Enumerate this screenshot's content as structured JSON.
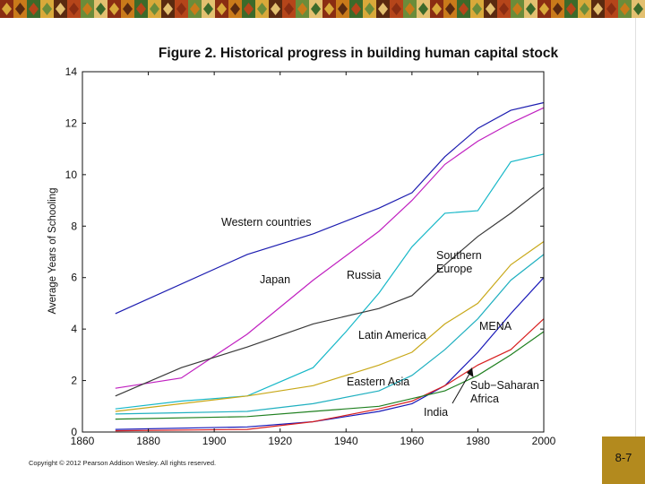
{
  "footer": {
    "copyright": "Copyright © 2012 Pearson Addison Wesley. All rights reserved.",
    "slide_number": "8-7"
  },
  "chart_data": {
    "type": "line",
    "title": "Figure 2. Historical progress in building human capital stock",
    "xlabel": "",
    "ylabel": "Average Years of Schooling",
    "xlim": [
      1860,
      2000
    ],
    "ylim": [
      0,
      14
    ],
    "xticks": [
      1860,
      1880,
      1900,
      1920,
      1940,
      1960,
      1980,
      2000
    ],
    "yticks": [
      0,
      2,
      4,
      6,
      8,
      10,
      12,
      14
    ],
    "series": [
      {
        "name": "Western countries",
        "label": "Western countries",
        "color": "#1c1cb0",
        "x": [
          1870,
          1910,
          1930,
          1950,
          1960,
          1970,
          1980,
          1990,
          2000
        ],
        "y": [
          4.6,
          6.9,
          7.7,
          8.7,
          9.3,
          10.7,
          11.8,
          12.5,
          12.8
        ]
      },
      {
        "name": "Japan",
        "label": "Japan",
        "color": "#c020c0",
        "x": [
          1870,
          1890,
          1910,
          1930,
          1950,
          1960,
          1970,
          1980,
          1990,
          2000
        ],
        "y": [
          1.7,
          2.1,
          3.8,
          5.9,
          7.8,
          9.0,
          10.4,
          11.3,
          12.0,
          12.6
        ]
      },
      {
        "name": "Russia",
        "label": "Russia",
        "color": "#18b8c8",
        "x": [
          1870,
          1890,
          1910,
          1930,
          1940,
          1950,
          1960,
          1970,
          1980,
          1990,
          2000
        ],
        "y": [
          0.9,
          1.2,
          1.4,
          2.5,
          3.9,
          5.4,
          7.2,
          8.5,
          8.6,
          10.5,
          10.8
        ]
      },
      {
        "name": "Southern Europe",
        "label": "Southern Europe",
        "color": "#3a3a3a",
        "x": [
          1870,
          1890,
          1910,
          1930,
          1950,
          1960,
          1970,
          1980,
          1990,
          2000
        ],
        "y": [
          1.4,
          2.5,
          3.3,
          4.2,
          4.8,
          5.3,
          6.5,
          7.6,
          8.5,
          9.5
        ]
      },
      {
        "name": "Latin America",
        "label": "Latin America",
        "color": "#c8a818",
        "x": [
          1870,
          1890,
          1910,
          1930,
          1950,
          1960,
          1970,
          1980,
          1990,
          2000
        ],
        "y": [
          0.8,
          1.1,
          1.4,
          1.8,
          2.6,
          3.1,
          4.2,
          5.0,
          6.5,
          7.4
        ]
      },
      {
        "name": "Eastern Asia",
        "label": "Eastern Asia",
        "color": "#20b0c0",
        "x": [
          1870,
          1890,
          1910,
          1930,
          1950,
          1960,
          1970,
          1980,
          1990,
          2000
        ],
        "y": [
          0.7,
          0.75,
          0.8,
          1.1,
          1.6,
          2.2,
          3.2,
          4.4,
          5.9,
          6.9
        ]
      },
      {
        "name": "MENA",
        "label": "MENA",
        "color": "#1818b8",
        "x": [
          1870,
          1910,
          1930,
          1950,
          1960,
          1970,
          1980,
          1990,
          2000
        ],
        "y": [
          0.1,
          0.2,
          0.4,
          0.8,
          1.1,
          1.8,
          3.1,
          4.6,
          6.0
        ]
      },
      {
        "name": "India",
        "label": "India",
        "color": "#d82020",
        "x": [
          1870,
          1910,
          1930,
          1950,
          1960,
          1970,
          1980,
          1990,
          2000
        ],
        "y": [
          0.05,
          0.1,
          0.4,
          0.9,
          1.2,
          1.8,
          2.6,
          3.2,
          4.4
        ]
      },
      {
        "name": "Sub-Saharan Africa",
        "label": "Sub−Saharan Africa",
        "color": "#208020",
        "x": [
          1870,
          1910,
          1930,
          1950,
          1960,
          1970,
          1980,
          1990,
          2000
        ],
        "y": [
          0.5,
          0.6,
          0.8,
          1.0,
          1.3,
          1.6,
          2.2,
          3.0,
          3.9
        ]
      }
    ]
  }
}
